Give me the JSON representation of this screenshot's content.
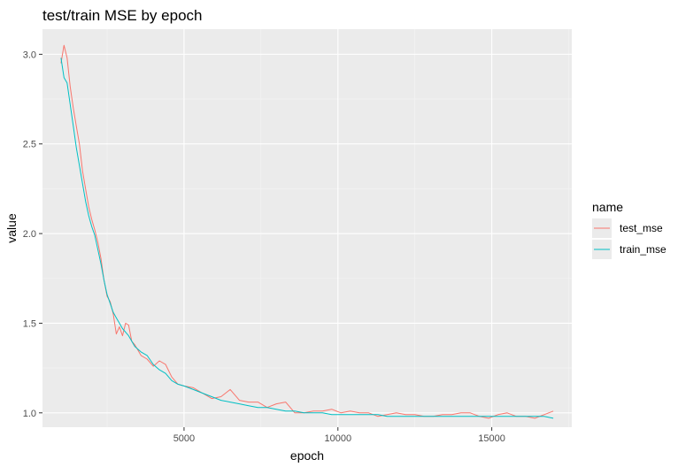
{
  "chart_data": {
    "type": "line",
    "title": "test/train MSE by epoch",
    "xlabel": "epoch",
    "ylabel": "value",
    "xlim": [
      400,
      17600
    ],
    "ylim": [
      0.92,
      3.14
    ],
    "x_ticks": [
      5000,
      10000,
      15000
    ],
    "x_tick_labels": [
      "5000",
      "10000",
      "15000"
    ],
    "y_ticks": [
      1.0,
      1.5,
      2.0,
      2.5,
      3.0
    ],
    "y_tick_labels": [
      "1.0",
      "1.5",
      "2.0",
      "2.5",
      "3.0"
    ],
    "grid": true,
    "legend": {
      "title": "name",
      "position": "right"
    },
    "series": [
      {
        "name": "test_mse",
        "color": "#f8766d",
        "points": [
          [
            1000,
            2.95
          ],
          [
            1100,
            3.05
          ],
          [
            1200,
            2.98
          ],
          [
            1300,
            2.82
          ],
          [
            1400,
            2.7
          ],
          [
            1500,
            2.6
          ],
          [
            1600,
            2.5
          ],
          [
            1700,
            2.35
          ],
          [
            1800,
            2.25
          ],
          [
            1900,
            2.15
          ],
          [
            2000,
            2.08
          ],
          [
            2100,
            2.02
          ],
          [
            2200,
            1.95
          ],
          [
            2300,
            1.86
          ],
          [
            2400,
            1.74
          ],
          [
            2500,
            1.65
          ],
          [
            2600,
            1.62
          ],
          [
            2700,
            1.55
          ],
          [
            2800,
            1.44
          ],
          [
            2900,
            1.48
          ],
          [
            3000,
            1.43
          ],
          [
            3100,
            1.5
          ],
          [
            3200,
            1.49
          ],
          [
            3300,
            1.4
          ],
          [
            3400,
            1.38
          ],
          [
            3600,
            1.32
          ],
          [
            3800,
            1.3
          ],
          [
            4000,
            1.26
          ],
          [
            4200,
            1.29
          ],
          [
            4400,
            1.27
          ],
          [
            4600,
            1.2
          ],
          [
            4800,
            1.16
          ],
          [
            5000,
            1.15
          ],
          [
            5300,
            1.14
          ],
          [
            5600,
            1.11
          ],
          [
            5900,
            1.08
          ],
          [
            6200,
            1.09
          ],
          [
            6500,
            1.13
          ],
          [
            6800,
            1.07
          ],
          [
            7100,
            1.06
          ],
          [
            7400,
            1.06
          ],
          [
            7700,
            1.03
          ],
          [
            8000,
            1.05
          ],
          [
            8300,
            1.06
          ],
          [
            8600,
            1.0
          ],
          [
            8900,
            1.0
          ],
          [
            9200,
            1.01
          ],
          [
            9500,
            1.01
          ],
          [
            9800,
            1.02
          ],
          [
            10100,
            1.0
          ],
          [
            10400,
            1.01
          ],
          [
            10700,
            1.0
          ],
          [
            11000,
            1.0
          ],
          [
            11300,
            0.98
          ],
          [
            11600,
            0.99
          ],
          [
            11900,
            1.0
          ],
          [
            12200,
            0.99
          ],
          [
            12500,
            0.99
          ],
          [
            12800,
            0.98
          ],
          [
            13100,
            0.98
          ],
          [
            13400,
            0.99
          ],
          [
            13700,
            0.99
          ],
          [
            14000,
            1.0
          ],
          [
            14300,
            1.0
          ],
          [
            14600,
            0.98
          ],
          [
            14900,
            0.97
          ],
          [
            15200,
            0.99
          ],
          [
            15500,
            1.0
          ],
          [
            15800,
            0.98
          ],
          [
            16100,
            0.98
          ],
          [
            16400,
            0.97
          ],
          [
            16700,
            0.99
          ],
          [
            17000,
            1.01
          ]
        ]
      },
      {
        "name": "train_mse",
        "color": "#00bfc4",
        "points": [
          [
            1000,
            2.98
          ],
          [
            1100,
            2.87
          ],
          [
            1200,
            2.84
          ],
          [
            1300,
            2.72
          ],
          [
            1400,
            2.6
          ],
          [
            1500,
            2.48
          ],
          [
            1600,
            2.38
          ],
          [
            1700,
            2.28
          ],
          [
            1800,
            2.18
          ],
          [
            1900,
            2.1
          ],
          [
            2000,
            2.04
          ],
          [
            2100,
            1.99
          ],
          [
            2200,
            1.91
          ],
          [
            2300,
            1.83
          ],
          [
            2400,
            1.74
          ],
          [
            2500,
            1.66
          ],
          [
            2600,
            1.61
          ],
          [
            2700,
            1.56
          ],
          [
            2800,
            1.53
          ],
          [
            2900,
            1.5
          ],
          [
            3000,
            1.47
          ],
          [
            3100,
            1.45
          ],
          [
            3200,
            1.43
          ],
          [
            3300,
            1.4
          ],
          [
            3400,
            1.37
          ],
          [
            3600,
            1.34
          ],
          [
            3800,
            1.32
          ],
          [
            4000,
            1.27
          ],
          [
            4200,
            1.24
          ],
          [
            4400,
            1.22
          ],
          [
            4600,
            1.18
          ],
          [
            4800,
            1.16
          ],
          [
            5000,
            1.15
          ],
          [
            5300,
            1.13
          ],
          [
            5600,
            1.11
          ],
          [
            5900,
            1.09
          ],
          [
            6200,
            1.07
          ],
          [
            6500,
            1.06
          ],
          [
            6800,
            1.05
          ],
          [
            7100,
            1.04
          ],
          [
            7400,
            1.03
          ],
          [
            7700,
            1.03
          ],
          [
            8000,
            1.02
          ],
          [
            8300,
            1.01
          ],
          [
            8600,
            1.01
          ],
          [
            8900,
            1.0
          ],
          [
            9200,
            1.0
          ],
          [
            9500,
            1.0
          ],
          [
            9800,
            0.99
          ],
          [
            10100,
            0.99
          ],
          [
            10400,
            0.99
          ],
          [
            10700,
            0.99
          ],
          [
            11000,
            0.99
          ],
          [
            11300,
            0.99
          ],
          [
            11600,
            0.98
          ],
          [
            11900,
            0.98
          ],
          [
            12200,
            0.98
          ],
          [
            12500,
            0.98
          ],
          [
            12800,
            0.98
          ],
          [
            13100,
            0.98
          ],
          [
            13400,
            0.98
          ],
          [
            13700,
            0.98
          ],
          [
            14000,
            0.98
          ],
          [
            14300,
            0.98
          ],
          [
            14600,
            0.98
          ],
          [
            14900,
            0.98
          ],
          [
            15200,
            0.98
          ],
          [
            15500,
            0.98
          ],
          [
            15800,
            0.98
          ],
          [
            16100,
            0.98
          ],
          [
            16400,
            0.98
          ],
          [
            16700,
            0.98
          ],
          [
            17000,
            0.97
          ]
        ]
      }
    ]
  }
}
